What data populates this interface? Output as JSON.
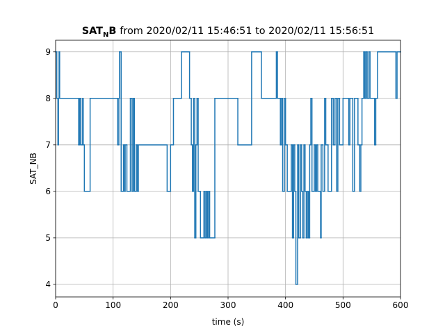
{
  "chart_data": {
    "type": "step",
    "title": {
      "bold": "SAT",
      "subscript": "N",
      "bold_tail": "B",
      "rest": "from 2020/02/11 15:46:51 to 2020/02/11 15:56:51"
    },
    "x_label": "time (s)",
    "y_label": "SAT_NB",
    "xlim": [
      0,
      600
    ],
    "xticks": [
      0,
      100,
      200,
      300,
      400,
      500,
      600
    ],
    "ylim": [
      3.73,
      9.25
    ],
    "yticks": [
      4,
      5,
      6,
      7,
      8,
      9
    ],
    "grid": true,
    "color": "#1f77b4",
    "x": [
      0,
      2,
      4,
      5,
      6,
      7,
      40,
      42,
      44,
      47,
      48,
      50,
      60,
      108,
      110,
      111,
      114,
      118,
      120,
      121,
      124,
      130,
      133,
      135,
      137,
      140,
      142,
      144,
      194,
      200,
      205,
      219,
      233,
      236,
      238,
      240,
      242,
      244,
      246,
      248,
      252,
      258,
      260,
      262,
      264,
      266,
      268,
      277,
      317,
      341,
      358,
      384,
      386,
      391,
      393,
      395,
      398,
      400,
      403,
      410,
      412,
      414,
      416,
      418,
      421,
      423,
      426,
      428,
      430,
      432,
      434,
      436,
      438,
      440,
      442,
      444,
      446,
      450,
      452,
      454,
      456,
      461,
      462,
      465,
      468,
      470,
      474,
      480,
      483,
      486,
      489,
      491,
      494,
      500,
      510,
      512,
      517,
      520,
      526,
      529,
      531,
      533,
      536,
      538,
      540,
      542,
      545,
      547,
      555,
      557,
      560,
      592,
      594,
      600
    ],
    "values": [
      9,
      8,
      7,
      8,
      9,
      8,
      7,
      8,
      7,
      8,
      7,
      6,
      8,
      7,
      8,
      9,
      6,
      7,
      6,
      7,
      6,
      8,
      6,
      8,
      6,
      7,
      6,
      7,
      6,
      7,
      8,
      9,
      8,
      7,
      6,
      8,
      5,
      7,
      8,
      6,
      5,
      6,
      5,
      6,
      5,
      6,
      5,
      8,
      7,
      9,
      8,
      9,
      8,
      7,
      8,
      6,
      8,
      7,
      6,
      7,
      5,
      7,
      6,
      4,
      7,
      5,
      7,
      6,
      5,
      7,
      6,
      5,
      6,
      5,
      7,
      8,
      6,
      7,
      6,
      7,
      6,
      5,
      7,
      6,
      8,
      7,
      6,
      8,
      7,
      8,
      6,
      8,
      7,
      8,
      7,
      8,
      6,
      8,
      7,
      6,
      7,
      8,
      9,
      8,
      9,
      8,
      9,
      8,
      7,
      8,
      9,
      8,
      9,
      9
    ]
  }
}
